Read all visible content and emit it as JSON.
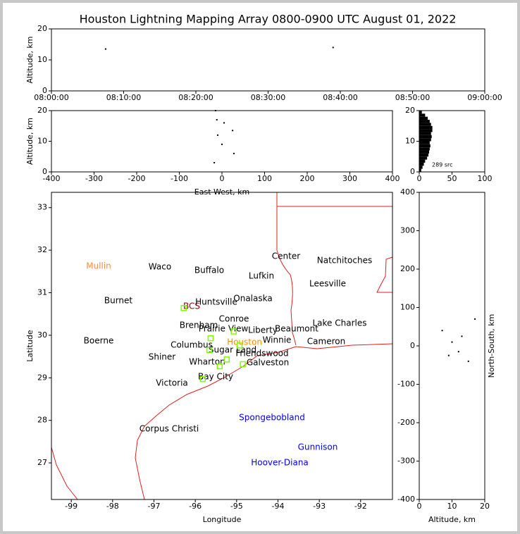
{
  "title": "Houston Lightning Mapping Array 0800-0900 UTC August 01, 2022",
  "chart_data": [
    {
      "type": "time-altitude",
      "ylabel": "Altitude, km",
      "xlim": [
        "08:00:00",
        "09:00:00"
      ],
      "xticks": [
        "08:00:00",
        "08:10:00",
        "08:20:00",
        "08:30:00",
        "08:40:00",
        "08:50:00",
        "09:00:00"
      ],
      "ylim": [
        0,
        20
      ],
      "yticks": [
        0,
        10,
        20
      ],
      "x": [
        "08:07:30",
        "08:39:00"
      ],
      "values": [
        13.5,
        14
      ],
      "color": "#000000"
    },
    {
      "type": "scatter",
      "xlabel": "East-West, km",
      "ylabel": "Altitude, km",
      "xlim": [
        -400,
        400
      ],
      "xticks": [
        -400,
        -300,
        -200,
        -100,
        0,
        100,
        200,
        300,
        400
      ],
      "ylim": [
        0,
        20
      ],
      "yticks": [
        0,
        10,
        20
      ],
      "x": [
        -15,
        -12,
        5,
        25,
        -10,
        0,
        28,
        -18
      ],
      "values": [
        20,
        17,
        16,
        13.5,
        12,
        9,
        6,
        3
      ],
      "color": "#000000"
    },
    {
      "type": "histogram",
      "annotation": "289 src",
      "xlim": [
        0,
        100
      ],
      "xticks": [
        0,
        50,
        100
      ],
      "ylim": [
        0,
        20
      ],
      "yticks": [
        0,
        10,
        20
      ],
      "bins": [
        0,
        1,
        2,
        3,
        4,
        5,
        6,
        7,
        8,
        9,
        10,
        11,
        12,
        13,
        14,
        15,
        16,
        17,
        18,
        19,
        20
      ],
      "values": [
        3,
        5,
        7,
        9,
        12,
        14,
        15,
        16,
        17,
        16,
        18,
        19,
        18,
        20,
        20,
        18,
        16,
        13,
        9,
        4
      ],
      "color": "#000000"
    },
    {
      "type": "map",
      "xlabel": "Longitude",
      "ylabel": "Latitude",
      "xlim": [
        -99.48,
        -91.23
      ],
      "xticks": [
        -99,
        -98,
        -97,
        -96,
        -95,
        -94,
        -93,
        -92
      ],
      "ylim": [
        26.14,
        33.36
      ],
      "yticks": [
        27,
        28,
        29,
        30,
        31,
        32,
        33
      ],
      "cities": [
        {
          "name": "Mullin",
          "color": "#ff8c40"
        },
        {
          "name": "Waco",
          "color": "#000000"
        },
        {
          "name": "Buffalo",
          "color": "#000000"
        },
        {
          "name": "Lufkin",
          "color": "#000000"
        },
        {
          "name": "Center",
          "color": "#000000"
        },
        {
          "name": "Natchitoches",
          "color": "#000000"
        },
        {
          "name": "Leesville",
          "color": "#000000"
        },
        {
          "name": "Burnet",
          "color": "#000000"
        },
        {
          "name": "BCS",
          "color": "#8b0000"
        },
        {
          "name": "Huntsville",
          "color": "#000000"
        },
        {
          "name": "Onalaska",
          "color": "#000000"
        },
        {
          "name": "Conroe",
          "color": "#000000"
        },
        {
          "name": "Brenham",
          "color": "#000000"
        },
        {
          "name": "Prairie View",
          "color": "#000000"
        },
        {
          "name": "Liberty",
          "color": "#000000"
        },
        {
          "name": "Beaumont",
          "color": "#000000"
        },
        {
          "name": "Lake Charles",
          "color": "#000000"
        },
        {
          "name": "Boerne",
          "color": "#000000"
        },
        {
          "name": "Columbus",
          "color": "#000000"
        },
        {
          "name": "Sugar Land",
          "color": "#000000"
        },
        {
          "name": "Houston",
          "color": "#ff8c00"
        },
        {
          "name": "Winnie",
          "color": "#000000"
        },
        {
          "name": "Cameron",
          "color": "#000000"
        },
        {
          "name": "Friendswood",
          "color": "#000000"
        },
        {
          "name": "Shiner",
          "color": "#000000"
        },
        {
          "name": "Wharton",
          "color": "#000000"
        },
        {
          "name": "Galveston",
          "color": "#000000"
        },
        {
          "name": "Bay City",
          "color": "#000000"
        },
        {
          "name": "Victoria",
          "color": "#000000"
        },
        {
          "name": "Spongebobland",
          "color": "#0000ff"
        },
        {
          "name": "Corpus Christi",
          "color": "#000000"
        },
        {
          "name": "Gunnison",
          "color": "#0000ff"
        },
        {
          "name": "Hoover-Diana",
          "color": "#0000ff"
        }
      ],
      "x": [
        -96.28,
        -95.63,
        -95.66,
        -95.07,
        -95.24,
        -95.41,
        -94.85,
        -95.82,
        -94.93
      ],
      "values": [
        30.64,
        29.93,
        29.65,
        30.09,
        29.43,
        29.27,
        29.32,
        28.97,
        29.76
      ],
      "color": "#7fff00"
    },
    {
      "type": "scatter",
      "xlabel": "Altitude, km",
      "ylabel": "North-South, km",
      "ylabel_side": "right",
      "xlim": [
        0,
        20
      ],
      "xticks": [
        0,
        10,
        20
      ],
      "ylim": [
        -400,
        400
      ],
      "yticks": [
        -400,
        -300,
        -200,
        -100,
        0,
        100,
        200,
        300,
        400
      ],
      "x": [
        7,
        9,
        10,
        12,
        13,
        15,
        17
      ],
      "values": [
        40,
        -25,
        10,
        -15,
        25,
        -40,
        70
      ],
      "color": "#000000"
    }
  ]
}
